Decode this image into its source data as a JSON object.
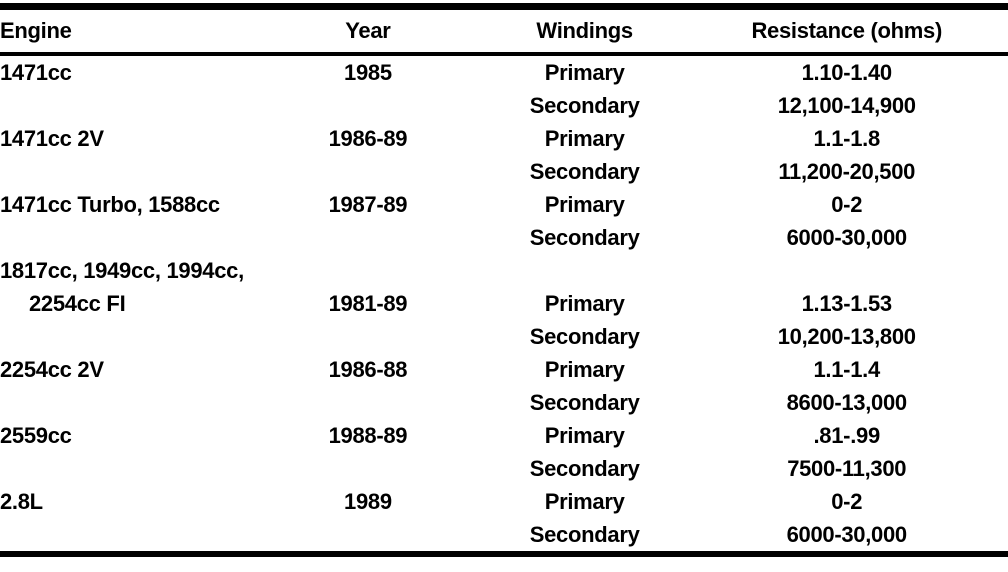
{
  "colors": {
    "ink": "#000000",
    "paper": "#ffffff"
  },
  "table": {
    "headers": [
      "Engine",
      "Year",
      "Windings",
      "Resistance (ohms)"
    ],
    "rows": [
      {
        "engine": "1471cc",
        "indent": false,
        "year": "1985",
        "winding": "Primary",
        "resistance": "1.10-1.40"
      },
      {
        "engine": "",
        "indent": false,
        "year": "",
        "winding": "Secondary",
        "resistance": "12,100-14,900"
      },
      {
        "engine": "1471cc 2V",
        "indent": false,
        "year": "1986-89",
        "winding": "Primary",
        "resistance": "1.1-1.8"
      },
      {
        "engine": "",
        "indent": false,
        "year": "",
        "winding": "Secondary",
        "resistance": "11,200-20,500"
      },
      {
        "engine": "1471cc Turbo, 1588cc",
        "indent": false,
        "year": "1987-89",
        "winding": "Primary",
        "resistance": "0-2"
      },
      {
        "engine": "",
        "indent": false,
        "year": "",
        "winding": "Secondary",
        "resistance": "6000-30,000"
      },
      {
        "engine": "1817cc, 1949cc, 1994cc,",
        "indent": false,
        "year": "",
        "winding": "",
        "resistance": ""
      },
      {
        "engine": "2254cc FI",
        "indent": true,
        "year": "1981-89",
        "winding": "Primary",
        "resistance": "1.13-1.53"
      },
      {
        "engine": "",
        "indent": false,
        "year": "",
        "winding": "Secondary",
        "resistance": "10,200-13,800"
      },
      {
        "engine": "2254cc 2V",
        "indent": false,
        "year": "1986-88",
        "winding": "Primary",
        "resistance": "1.1-1.4"
      },
      {
        "engine": "",
        "indent": false,
        "year": "",
        "winding": "Secondary",
        "resistance": "8600-13,000"
      },
      {
        "engine": "2559cc",
        "indent": false,
        "year": "1988-89",
        "winding": "Primary",
        "resistance": ".81-.99"
      },
      {
        "engine": "",
        "indent": false,
        "year": "",
        "winding": "Secondary",
        "resistance": "7500-11,300"
      },
      {
        "engine": "2.8L",
        "indent": false,
        "year": "1989",
        "winding": "Primary",
        "resistance": "0-2"
      },
      {
        "engine": "",
        "indent": false,
        "year": "",
        "winding": "Secondary",
        "resistance": "6000-30,000"
      }
    ]
  }
}
